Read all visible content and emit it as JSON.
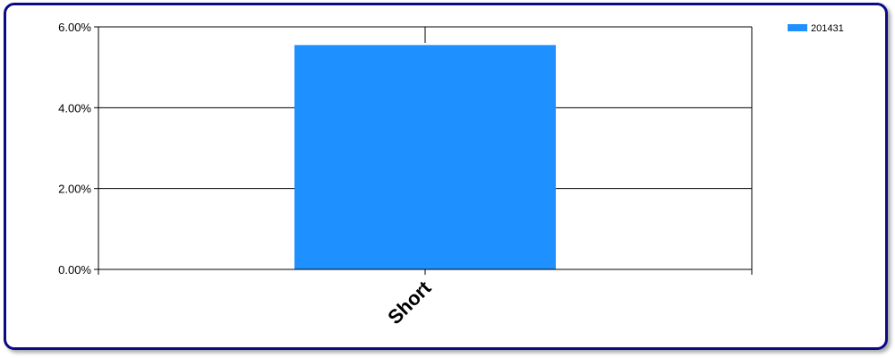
{
  "chart_data": {
    "type": "bar",
    "categories": [
      "Short"
    ],
    "series": [
      {
        "name": "201431",
        "values": [
          5.55
        ],
        "color": "#1e90ff"
      }
    ],
    "y_ticks": [
      "0.00%",
      "2.00%",
      "4.00%",
      "6.00%"
    ],
    "y_tick_values": [
      0,
      2,
      4,
      6
    ],
    "ylim": [
      0,
      6
    ],
    "grid": true,
    "legend": "top-right"
  }
}
